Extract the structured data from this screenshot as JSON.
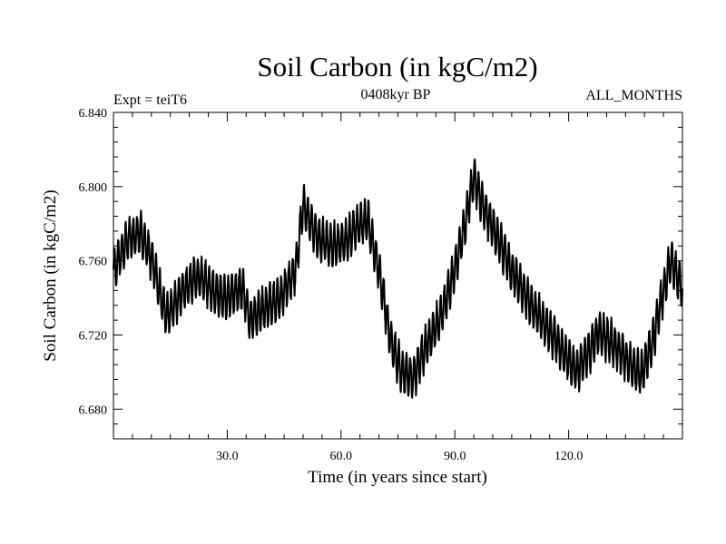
{
  "chart_data": {
    "type": "line",
    "title": "Soil Carbon (in kgC/m2)",
    "subtitle_left": "Expt = teiT6",
    "subtitle_center": "0408kyr BP",
    "subtitle_right": "ALL_MONTHS",
    "xlabel": "Time (in years since start)",
    "ylabel": "Soil Carbon (in kgC/m2)",
    "xlim": [
      0,
      150
    ],
    "ylim": [
      6.664,
      6.84
    ],
    "x_ticks": [
      30,
      60,
      90,
      120
    ],
    "x_tick_labels": [
      "30.0",
      "60.0",
      "90.0",
      "120.0"
    ],
    "y_ticks": [
      6.68,
      6.72,
      6.76,
      6.8,
      6.84
    ],
    "y_tick_labels": [
      "6.680",
      "6.720",
      "6.760",
      "6.800",
      "6.840"
    ],
    "annual_cycle_amplitude": 0.011,
    "series": [
      {
        "name": "Soil Carbon",
        "color": "#000000",
        "trend_x": [
          0,
          4,
          7,
          10,
          12,
          14,
          18,
          22,
          25,
          27,
          30,
          34,
          36,
          40,
          44,
          48,
          50,
          54,
          58,
          61,
          64,
          67,
          70,
          73,
          76,
          79,
          82,
          86,
          90,
          93,
          95,
          97,
          100,
          105,
          110,
          115,
          118,
          122,
          125,
          128,
          130,
          133,
          136,
          139,
          142,
          144,
          147,
          150
        ],
        "trend_y": [
          6.755,
          6.772,
          6.775,
          6.762,
          6.745,
          6.73,
          6.743,
          6.752,
          6.747,
          6.742,
          6.74,
          6.745,
          6.728,
          6.735,
          6.74,
          6.755,
          6.79,
          6.772,
          6.768,
          6.77,
          6.778,
          6.782,
          6.755,
          6.718,
          6.7,
          6.697,
          6.712,
          6.728,
          6.755,
          6.783,
          6.805,
          6.792,
          6.778,
          6.755,
          6.736,
          6.722,
          6.713,
          6.7,
          6.71,
          6.722,
          6.718,
          6.712,
          6.705,
          6.698,
          6.715,
          6.735,
          6.76,
          6.745
        ]
      }
    ]
  }
}
